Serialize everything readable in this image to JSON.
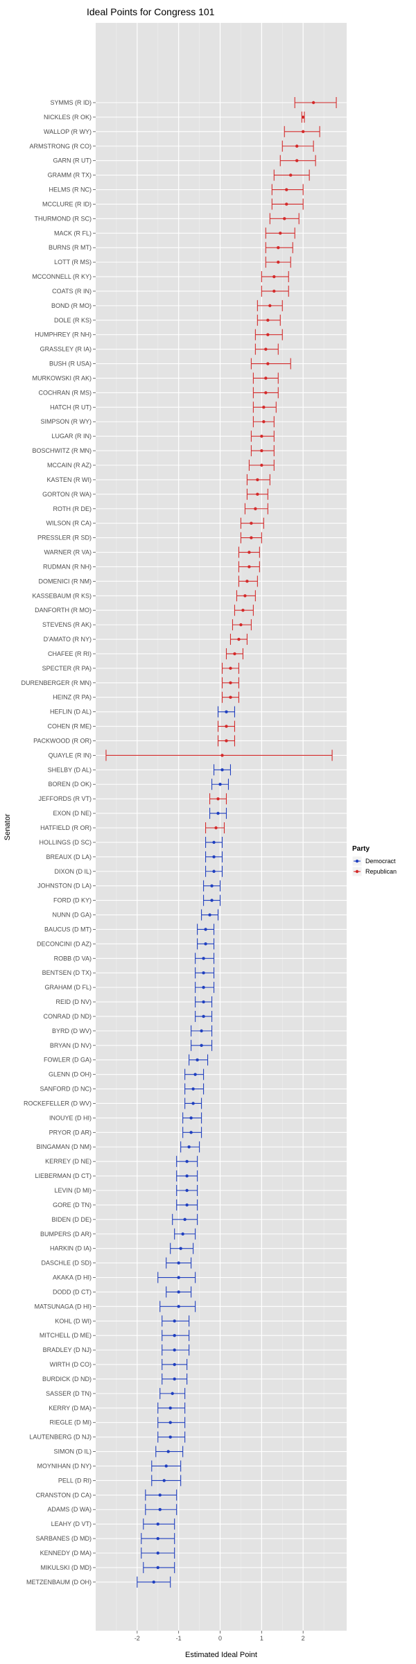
{
  "chart_data": {
    "type": "errorbar-dot",
    "title": "Ideal Points for Congress 101",
    "xlabel": "Estimated Ideal Point",
    "ylabel": "Senator",
    "xlim": [
      -3.0,
      3.05
    ],
    "xticks": [
      -2,
      -1,
      0,
      1,
      2
    ],
    "grid": true,
    "legend": {
      "title": "Party",
      "position": "right",
      "entries": [
        {
          "label": "Democract",
          "color": "#1f3fbf"
        },
        {
          "label": "Republican",
          "color": "#d42a2a"
        }
      ]
    },
    "colors": {
      "D": "#1f3fbf",
      "R": "#d42a2a",
      "panel": "#e3e3e3",
      "grid": "#ffffff"
    },
    "senators": [
      {
        "name": "SYMMS (R ID)",
        "party": "R",
        "est": 2.25,
        "lo": 1.8,
        "hi": 2.8
      },
      {
        "name": "NICKLES (R OK)",
        "party": "R",
        "est": 2.0,
        "lo": 1.97,
        "hi": 2.03
      },
      {
        "name": "WALLOP (R WY)",
        "party": "R",
        "est": 2.0,
        "lo": 1.55,
        "hi": 2.4
      },
      {
        "name": "ARMSTRONG (R CO)",
        "party": "R",
        "est": 1.85,
        "lo": 1.5,
        "hi": 2.25
      },
      {
        "name": "GARN (R UT)",
        "party": "R",
        "est": 1.85,
        "lo": 1.45,
        "hi": 2.3
      },
      {
        "name": "GRAMM (R TX)",
        "party": "R",
        "est": 1.7,
        "lo": 1.3,
        "hi": 2.15
      },
      {
        "name": "HELMS (R NC)",
        "party": "R",
        "est": 1.6,
        "lo": 1.25,
        "hi": 2.0
      },
      {
        "name": "MCCLURE (R ID)",
        "party": "R",
        "est": 1.6,
        "lo": 1.25,
        "hi": 2.0
      },
      {
        "name": "THURMOND (R SC)",
        "party": "R",
        "est": 1.55,
        "lo": 1.2,
        "hi": 1.9
      },
      {
        "name": "MACK (R FL)",
        "party": "R",
        "est": 1.45,
        "lo": 1.1,
        "hi": 1.8
      },
      {
        "name": "BURNS (R MT)",
        "party": "R",
        "est": 1.4,
        "lo": 1.1,
        "hi": 1.75
      },
      {
        "name": "LOTT (R MS)",
        "party": "R",
        "est": 1.4,
        "lo": 1.1,
        "hi": 1.7
      },
      {
        "name": "MCCONNELL (R KY)",
        "party": "R",
        "est": 1.3,
        "lo": 1.0,
        "hi": 1.65
      },
      {
        "name": "COATS (R IN)",
        "party": "R",
        "est": 1.3,
        "lo": 1.0,
        "hi": 1.65
      },
      {
        "name": "BOND (R MO)",
        "party": "R",
        "est": 1.2,
        "lo": 0.9,
        "hi": 1.5
      },
      {
        "name": "DOLE (R KS)",
        "party": "R",
        "est": 1.15,
        "lo": 0.9,
        "hi": 1.45
      },
      {
        "name": "HUMPHREY (R NH)",
        "party": "R",
        "est": 1.15,
        "lo": 0.85,
        "hi": 1.5
      },
      {
        "name": "GRASSLEY (R IA)",
        "party": "R",
        "est": 1.1,
        "lo": 0.85,
        "hi": 1.4
      },
      {
        "name": "BUSH (R USA)",
        "party": "R",
        "est": 1.15,
        "lo": 0.75,
        "hi": 1.7
      },
      {
        "name": "MURKOWSKI (R AK)",
        "party": "R",
        "est": 1.1,
        "lo": 0.8,
        "hi": 1.4
      },
      {
        "name": "COCHRAN (R MS)",
        "party": "R",
        "est": 1.1,
        "lo": 0.8,
        "hi": 1.4
      },
      {
        "name": "HATCH (R UT)",
        "party": "R",
        "est": 1.05,
        "lo": 0.8,
        "hi": 1.35
      },
      {
        "name": "SIMPSON (R WY)",
        "party": "R",
        "est": 1.05,
        "lo": 0.8,
        "hi": 1.3
      },
      {
        "name": "LUGAR (R IN)",
        "party": "R",
        "est": 1.0,
        "lo": 0.75,
        "hi": 1.3
      },
      {
        "name": "BOSCHWITZ (R MN)",
        "party": "R",
        "est": 1.0,
        "lo": 0.75,
        "hi": 1.3
      },
      {
        "name": "MCCAIN (R AZ)",
        "party": "R",
        "est": 1.0,
        "lo": 0.7,
        "hi": 1.3
      },
      {
        "name": "KASTEN (R WI)",
        "party": "R",
        "est": 0.9,
        "lo": 0.65,
        "hi": 1.2
      },
      {
        "name": "GORTON (R WA)",
        "party": "R",
        "est": 0.9,
        "lo": 0.65,
        "hi": 1.15
      },
      {
        "name": "ROTH (R DE)",
        "party": "R",
        "est": 0.85,
        "lo": 0.6,
        "hi": 1.15
      },
      {
        "name": "WILSON (R CA)",
        "party": "R",
        "est": 0.75,
        "lo": 0.5,
        "hi": 1.05
      },
      {
        "name": "PRESSLER (R SD)",
        "party": "R",
        "est": 0.75,
        "lo": 0.5,
        "hi": 1.0
      },
      {
        "name": "WARNER (R VA)",
        "party": "R",
        "est": 0.7,
        "lo": 0.45,
        "hi": 0.95
      },
      {
        "name": "RUDMAN (R NH)",
        "party": "R",
        "est": 0.7,
        "lo": 0.45,
        "hi": 0.95
      },
      {
        "name": "DOMENICI (R NM)",
        "party": "R",
        "est": 0.65,
        "lo": 0.45,
        "hi": 0.9
      },
      {
        "name": "KASSEBAUM (R KS)",
        "party": "R",
        "est": 0.6,
        "lo": 0.4,
        "hi": 0.85
      },
      {
        "name": "DANFORTH (R MO)",
        "party": "R",
        "est": 0.55,
        "lo": 0.35,
        "hi": 0.8
      },
      {
        "name": "STEVENS (R AK)",
        "party": "R",
        "est": 0.5,
        "lo": 0.3,
        "hi": 0.75
      },
      {
        "name": "D'AMATO (R NY)",
        "party": "R",
        "est": 0.45,
        "lo": 0.25,
        "hi": 0.65
      },
      {
        "name": "CHAFEE (R RI)",
        "party": "R",
        "est": 0.35,
        "lo": 0.15,
        "hi": 0.55
      },
      {
        "name": "SPECTER (R PA)",
        "party": "R",
        "est": 0.25,
        "lo": 0.05,
        "hi": 0.45
      },
      {
        "name": "DURENBERGER (R MN)",
        "party": "R",
        "est": 0.25,
        "lo": 0.05,
        "hi": 0.45
      },
      {
        "name": "HEINZ (R PA)",
        "party": "R",
        "est": 0.25,
        "lo": 0.05,
        "hi": 0.45
      },
      {
        "name": "HEFLIN (D AL)",
        "party": "D",
        "est": 0.15,
        "lo": -0.05,
        "hi": 0.35
      },
      {
        "name": "COHEN (R ME)",
        "party": "R",
        "est": 0.15,
        "lo": -0.05,
        "hi": 0.35
      },
      {
        "name": "PACKWOOD (R OR)",
        "party": "R",
        "est": 0.15,
        "lo": -0.05,
        "hi": 0.35
      },
      {
        "name": "QUAYLE (R IN)",
        "party": "R",
        "est": 0.05,
        "lo": -2.75,
        "hi": 2.7
      },
      {
        "name": "SHELBY (D AL)",
        "party": "D",
        "est": 0.05,
        "lo": -0.15,
        "hi": 0.25
      },
      {
        "name": "BOREN (D OK)",
        "party": "D",
        "est": 0.0,
        "lo": -0.2,
        "hi": 0.2
      },
      {
        "name": "JEFFORDS (R VT)",
        "party": "R",
        "est": -0.05,
        "lo": -0.25,
        "hi": 0.15
      },
      {
        "name": "EXON (D NE)",
        "party": "D",
        "est": -0.05,
        "lo": -0.25,
        "hi": 0.15
      },
      {
        "name": "HATFIELD (R OR)",
        "party": "R",
        "est": -0.1,
        "lo": -0.35,
        "hi": 0.1
      },
      {
        "name": "HOLLINGS (D SC)",
        "party": "D",
        "est": -0.15,
        "lo": -0.35,
        "hi": 0.05
      },
      {
        "name": "BREAUX (D LA)",
        "party": "D",
        "est": -0.15,
        "lo": -0.35,
        "hi": 0.05
      },
      {
        "name": "DIXON (D IL)",
        "party": "D",
        "est": -0.15,
        "lo": -0.35,
        "hi": 0.05
      },
      {
        "name": "JOHNSTON (D LA)",
        "party": "D",
        "est": -0.2,
        "lo": -0.4,
        "hi": 0.0
      },
      {
        "name": "FORD (D KY)",
        "party": "D",
        "est": -0.2,
        "lo": -0.4,
        "hi": 0.0
      },
      {
        "name": "NUNN (D GA)",
        "party": "D",
        "est": -0.25,
        "lo": -0.45,
        "hi": -0.05
      },
      {
        "name": "BAUCUS (D MT)",
        "party": "D",
        "est": -0.35,
        "lo": -0.55,
        "hi": -0.15
      },
      {
        "name": "DECONCINI (D AZ)",
        "party": "D",
        "est": -0.35,
        "lo": -0.55,
        "hi": -0.15
      },
      {
        "name": "ROBB (D VA)",
        "party": "D",
        "est": -0.4,
        "lo": -0.6,
        "hi": -0.15
      },
      {
        "name": "BENTSEN (D TX)",
        "party": "D",
        "est": -0.4,
        "lo": -0.6,
        "hi": -0.15
      },
      {
        "name": "GRAHAM (D FL)",
        "party": "D",
        "est": -0.4,
        "lo": -0.6,
        "hi": -0.15
      },
      {
        "name": "REID (D NV)",
        "party": "D",
        "est": -0.4,
        "lo": -0.6,
        "hi": -0.2
      },
      {
        "name": "CONRAD (D ND)",
        "party": "D",
        "est": -0.4,
        "lo": -0.6,
        "hi": -0.2
      },
      {
        "name": "BYRD (D WV)",
        "party": "D",
        "est": -0.45,
        "lo": -0.7,
        "hi": -0.2
      },
      {
        "name": "BRYAN (D NV)",
        "party": "D",
        "est": -0.45,
        "lo": -0.7,
        "hi": -0.2
      },
      {
        "name": "FOWLER (D GA)",
        "party": "D",
        "est": -0.55,
        "lo": -0.75,
        "hi": -0.3
      },
      {
        "name": "GLENN (D OH)",
        "party": "D",
        "est": -0.6,
        "lo": -0.85,
        "hi": -0.4
      },
      {
        "name": "SANFORD (D NC)",
        "party": "D",
        "est": -0.65,
        "lo": -0.85,
        "hi": -0.4
      },
      {
        "name": "ROCKEFELLER (D WV)",
        "party": "D",
        "est": -0.65,
        "lo": -0.85,
        "hi": -0.45
      },
      {
        "name": "INOUYE (D HI)",
        "party": "D",
        "est": -0.7,
        "lo": -0.9,
        "hi": -0.45
      },
      {
        "name": "PRYOR (D AR)",
        "party": "D",
        "est": -0.7,
        "lo": -0.9,
        "hi": -0.45
      },
      {
        "name": "BINGAMAN (D NM)",
        "party": "D",
        "est": -0.75,
        "lo": -0.95,
        "hi": -0.5
      },
      {
        "name": "KERREY (D NE)",
        "party": "D",
        "est": -0.8,
        "lo": -1.05,
        "hi": -0.55
      },
      {
        "name": "LIEBERMAN (D CT)",
        "party": "D",
        "est": -0.8,
        "lo": -1.05,
        "hi": -0.55
      },
      {
        "name": "LEVIN (D MI)",
        "party": "D",
        "est": -0.8,
        "lo": -1.05,
        "hi": -0.55
      },
      {
        "name": "GORE (D TN)",
        "party": "D",
        "est": -0.8,
        "lo": -1.05,
        "hi": -0.55
      },
      {
        "name": "BIDEN (D DE)",
        "party": "D",
        "est": -0.85,
        "lo": -1.15,
        "hi": -0.55
      },
      {
        "name": "BUMPERS (D AR)",
        "party": "D",
        "est": -0.9,
        "lo": -1.1,
        "hi": -0.6
      },
      {
        "name": "HARKIN (D IA)",
        "party": "D",
        "est": -0.95,
        "lo": -1.2,
        "hi": -0.65
      },
      {
        "name": "DASCHLE (D SD)",
        "party": "D",
        "est": -1.0,
        "lo": -1.3,
        "hi": -0.7
      },
      {
        "name": "AKAKA (D HI)",
        "party": "D",
        "est": -1.0,
        "lo": -1.5,
        "hi": -0.6
      },
      {
        "name": "DODD (D CT)",
        "party": "D",
        "est": -1.0,
        "lo": -1.3,
        "hi": -0.7
      },
      {
        "name": "MATSUNAGA (D HI)",
        "party": "D",
        "est": -1.0,
        "lo": -1.45,
        "hi": -0.6
      },
      {
        "name": "KOHL (D WI)",
        "party": "D",
        "est": -1.1,
        "lo": -1.4,
        "hi": -0.75
      },
      {
        "name": "MITCHELL (D ME)",
        "party": "D",
        "est": -1.1,
        "lo": -1.4,
        "hi": -0.75
      },
      {
        "name": "BRADLEY (D NJ)",
        "party": "D",
        "est": -1.1,
        "lo": -1.4,
        "hi": -0.75
      },
      {
        "name": "WIRTH (D CO)",
        "party": "D",
        "est": -1.1,
        "lo": -1.4,
        "hi": -0.8
      },
      {
        "name": "BURDICK (D ND)",
        "party": "D",
        "est": -1.1,
        "lo": -1.4,
        "hi": -0.8
      },
      {
        "name": "SASSER (D TN)",
        "party": "D",
        "est": -1.15,
        "lo": -1.45,
        "hi": -0.85
      },
      {
        "name": "KERRY (D MA)",
        "party": "D",
        "est": -1.2,
        "lo": -1.5,
        "hi": -0.85
      },
      {
        "name": "RIEGLE (D MI)",
        "party": "D",
        "est": -1.2,
        "lo": -1.5,
        "hi": -0.85
      },
      {
        "name": "LAUTENBERG (D NJ)",
        "party": "D",
        "est": -1.2,
        "lo": -1.5,
        "hi": -0.85
      },
      {
        "name": "SIMON (D IL)",
        "party": "D",
        "est": -1.25,
        "lo": -1.55,
        "hi": -0.9
      },
      {
        "name": "MOYNIHAN (D NY)",
        "party": "D",
        "est": -1.3,
        "lo": -1.65,
        "hi": -0.95
      },
      {
        "name": "PELL (D RI)",
        "party": "D",
        "est": -1.35,
        "lo": -1.65,
        "hi": -0.95
      },
      {
        "name": "CRANSTON (D CA)",
        "party": "D",
        "est": -1.45,
        "lo": -1.8,
        "hi": -1.05
      },
      {
        "name": "ADAMS (D WA)",
        "party": "D",
        "est": -1.45,
        "lo": -1.8,
        "hi": -1.05
      },
      {
        "name": "LEAHY (D VT)",
        "party": "D",
        "est": -1.5,
        "lo": -1.85,
        "hi": -1.1
      },
      {
        "name": "SARBANES (D MD)",
        "party": "D",
        "est": -1.5,
        "lo": -1.9,
        "hi": -1.1
      },
      {
        "name": "KENNEDY (D MA)",
        "party": "D",
        "est": -1.5,
        "lo": -1.9,
        "hi": -1.1
      },
      {
        "name": "MIKULSKI (D MD)",
        "party": "D",
        "est": -1.5,
        "lo": -1.85,
        "hi": -1.1
      },
      {
        "name": "METZENBAUM (D OH)",
        "party": "D",
        "est": -1.6,
        "lo": -2.0,
        "hi": -1.2
      }
    ]
  }
}
